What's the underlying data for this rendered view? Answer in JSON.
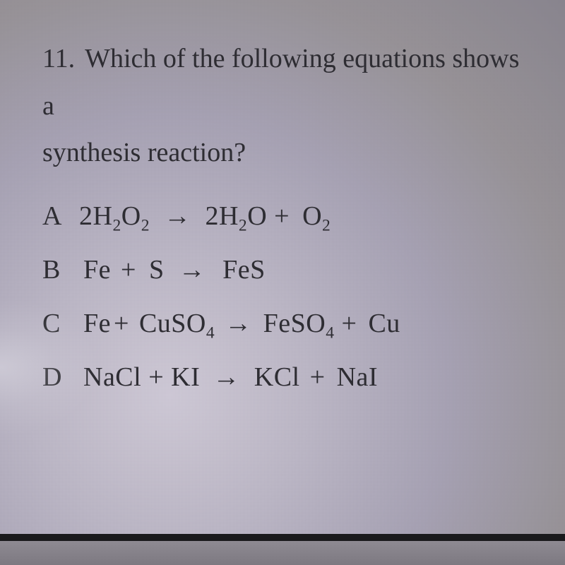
{
  "question": {
    "number": "11.",
    "text_line1": "Which of the following equations shows a",
    "text_line2": "synthesis reaction?"
  },
  "options": [
    {
      "letter": "A",
      "equation": [
        {
          "t": "2H"
        },
        {
          "sub": "2"
        },
        {
          "t": "O"
        },
        {
          "sub": "2"
        },
        {
          "sp": 14
        },
        {
          "arrow": "→"
        },
        {
          "sp": 14
        },
        {
          "t": "2H"
        },
        {
          "sub": "2"
        },
        {
          "t": "O"
        },
        {
          "sp": 10
        },
        {
          "t": "+"
        },
        {
          "sp": 18
        },
        {
          "t": "O"
        },
        {
          "sub": "2"
        }
      ]
    },
    {
      "letter": "B",
      "equation": [
        {
          "sp": 6
        },
        {
          "t": "Fe"
        },
        {
          "sp": 14
        },
        {
          "t": "+"
        },
        {
          "sp": 18
        },
        {
          "t": "S"
        },
        {
          "sp": 14
        },
        {
          "arrow": "→"
        },
        {
          "sp": 18
        },
        {
          "t": "FeS"
        }
      ]
    },
    {
      "letter": "C",
      "equation": [
        {
          "sp": 6
        },
        {
          "t": "Fe"
        },
        {
          "sp": 4
        },
        {
          "t": "+"
        },
        {
          "sp": 14
        },
        {
          "t": "CuSO"
        },
        {
          "sub": "4"
        },
        {
          "sp": 8
        },
        {
          "arrow": "→"
        },
        {
          "sp": 10
        },
        {
          "t": "FeSO"
        },
        {
          "sub": "4"
        },
        {
          "sp": 10
        },
        {
          "t": "+"
        },
        {
          "sp": 16
        },
        {
          "t": "Cu"
        }
      ]
    },
    {
      "letter": "D",
      "equation": [
        {
          "sp": 6
        },
        {
          "t": "NaCl"
        },
        {
          "sp": 10
        },
        {
          "t": "+"
        },
        {
          "sp": 10
        },
        {
          "t": "KI"
        },
        {
          "sp": 12
        },
        {
          "arrow": "→"
        },
        {
          "sp": 14
        },
        {
          "t": "KCl"
        },
        {
          "sp": 14
        },
        {
          "t": "+"
        },
        {
          "sp": 16
        },
        {
          "t": "NaI"
        }
      ]
    }
  ],
  "colors": {
    "text": "#2e2d33",
    "bar": "#1a1a1c"
  }
}
